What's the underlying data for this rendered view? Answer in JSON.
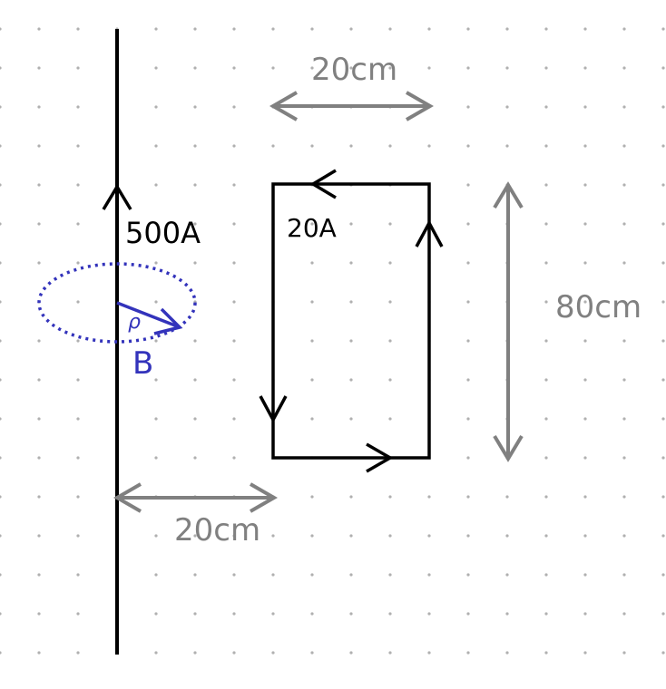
{
  "labels": {
    "wire_current": "500A",
    "loop_current": "20A",
    "field_label": "B",
    "radius_label": "ρ",
    "top_width": "20cm",
    "height": "80cm",
    "bottom_distance": "20cm"
  },
  "colors": {
    "conductor": "#000000",
    "field": "#3333bb",
    "dimension": "#808080",
    "grid_dot": "#b0b0b0",
    "background": "#ffffff"
  }
}
